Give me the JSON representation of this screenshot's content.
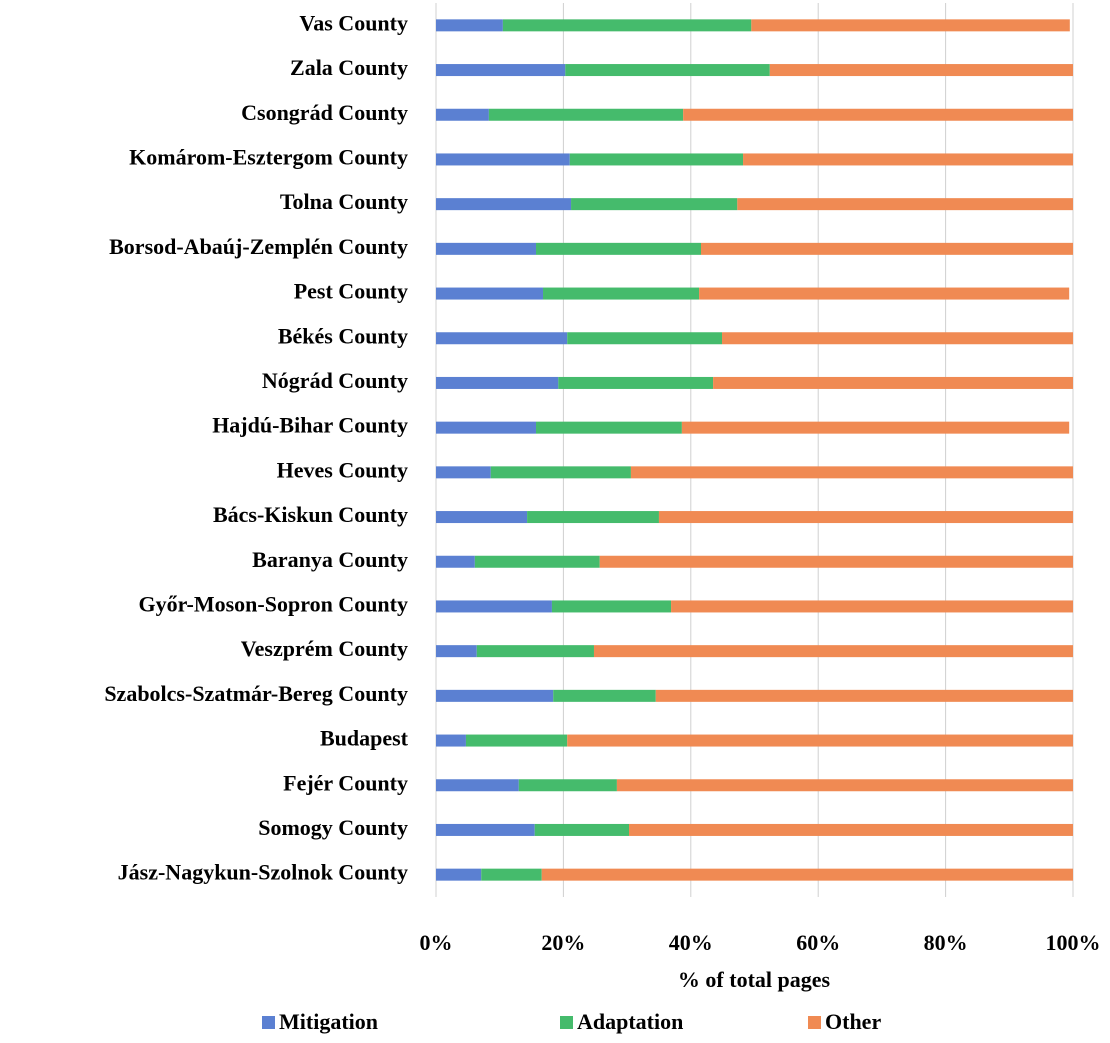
{
  "chart_data": {
    "type": "bar",
    "orientation": "horizontal",
    "stacked": true,
    "x_label": "% of total pages",
    "categories": [
      "Vas County",
      "Zala County",
      "Csongrád County",
      "Komárom-Esztergom County",
      "Tolna County",
      "Borsod-Abaúj-Zemplén County",
      "Pest County",
      "Békés County",
      "Nógrád County",
      "Hajdú-Bihar County",
      "Heves County",
      "Bács-Kiskun County",
      "Baranya County",
      "Győr-Moson-Sopron County",
      "Veszprém County",
      "Szabolcs-Szatmár-Bereg County",
      "Budapest",
      "Fejér County",
      "Somogy County",
      "Jász-Nagykun-Szolnok County"
    ],
    "series": [
      {
        "name": "Mitigation",
        "color": "#5b80d2",
        "values": [
          10.5,
          20.3,
          8.3,
          21,
          21.2,
          15.7,
          16.8,
          20.6,
          19.2,
          15.7,
          8.6,
          14.3,
          6.1,
          18.2,
          6.4,
          18.4,
          4.7,
          13,
          15.5,
          7.1
        ]
      },
      {
        "name": "Adaptation",
        "color": "#45bb6c",
        "values": [
          39,
          32.1,
          30.5,
          27.2,
          26.1,
          25.9,
          24.5,
          24.3,
          24.3,
          22.9,
          22,
          20.7,
          19.6,
          18.7,
          18.4,
          16.1,
          15.9,
          15.4,
          14.8,
          9.5
        ]
      },
      {
        "name": "Other",
        "color": "#f08a53",
        "values": [
          50,
          47.6,
          61.2,
          51.8,
          52.7,
          58.4,
          58.1,
          55.1,
          56.5,
          60.8,
          69.4,
          65,
          74.3,
          63.1,
          75.2,
          65.5,
          79.4,
          71.6,
          69.7,
          83.4
        ]
      }
    ],
    "xlim": [
      0,
      100
    ],
    "xticks": [
      {
        "value": 0,
        "label": "0%"
      },
      {
        "value": 20,
        "label": "20%"
      },
      {
        "value": 40,
        "label": "40%"
      },
      {
        "value": 60,
        "label": "60%"
      },
      {
        "value": 80,
        "label": "80%"
      },
      {
        "value": 100,
        "label": "100%"
      }
    ],
    "grid": true,
    "legend": "bottom"
  }
}
